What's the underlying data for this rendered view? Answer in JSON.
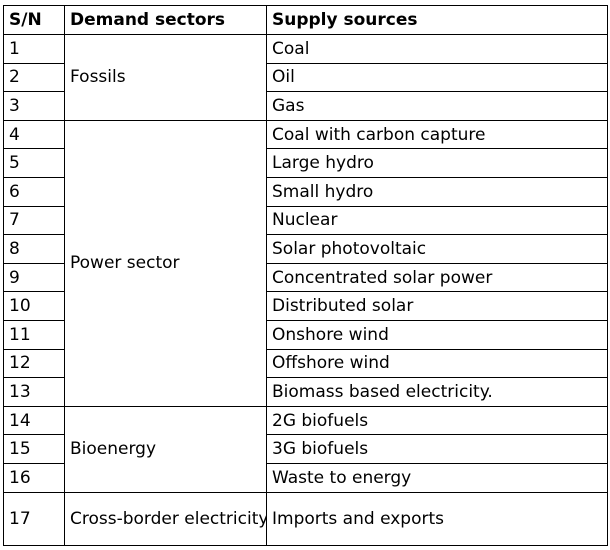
{
  "headers": {
    "sn": "S/N",
    "demand": "Demand sectors",
    "supply": "Supply sources"
  },
  "groups": [
    {
      "sector": "Fossils",
      "rows": [
        {
          "sn": "1",
          "source": "Coal"
        },
        {
          "sn": "2",
          "source": "Oil"
        },
        {
          "sn": "3",
          "source": "Gas"
        }
      ]
    },
    {
      "sector": "Power sector",
      "rows": [
        {
          "sn": "4",
          "source": "Coal with carbon capture"
        },
        {
          "sn": "5",
          "source": "Large hydro"
        },
        {
          "sn": "6",
          "source": "Small hydro"
        },
        {
          "sn": "7",
          "source": "Nuclear"
        },
        {
          "sn": "8",
          "source": "Solar photovoltaic"
        },
        {
          "sn": "9",
          "source": "Concentrated solar power"
        },
        {
          "sn": "10",
          "source": "Distributed solar"
        },
        {
          "sn": "11",
          "source": "Onshore wind"
        },
        {
          "sn": "12",
          "source": "Offshore wind"
        },
        {
          "sn": "13",
          "source": "Biomass based electricity."
        }
      ]
    },
    {
      "sector": "Bioenergy",
      "rows": [
        {
          "sn": "14",
          "source": "2G biofuels"
        },
        {
          "sn": "15",
          "source": "3G biofuels"
        },
        {
          "sn": "16",
          "source": "Waste to energy"
        }
      ]
    },
    {
      "sector": "Cross-border electricity trade",
      "rows": [
        {
          "sn": "17",
          "source": "Imports and exports"
        }
      ]
    }
  ]
}
